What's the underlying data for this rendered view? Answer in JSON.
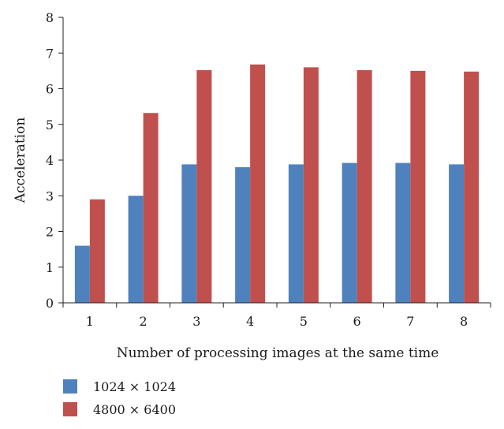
{
  "chart_data": {
    "type": "bar",
    "title": "",
    "xlabel": "Number of processing images at the same time",
    "ylabel": "Acceleration",
    "categories": [
      "1",
      "2",
      "3",
      "4",
      "5",
      "6",
      "7",
      "8"
    ],
    "ylim": [
      0,
      8
    ],
    "yticks": [
      "0",
      "1",
      "2",
      "3",
      "4",
      "5",
      "6",
      "7",
      "8"
    ],
    "grid": false,
    "legend_position": "bottom-left",
    "series": [
      {
        "name": "1024 × 1024",
        "color": "#4f81bd",
        "values": [
          1.6,
          3.0,
          3.88,
          3.8,
          3.88,
          3.92,
          3.92,
          3.88
        ]
      },
      {
        "name": "4800 × 6400",
        "color": "#c0504d",
        "values": [
          2.9,
          5.32,
          6.52,
          6.68,
          6.6,
          6.52,
          6.5,
          6.48
        ]
      }
    ]
  }
}
